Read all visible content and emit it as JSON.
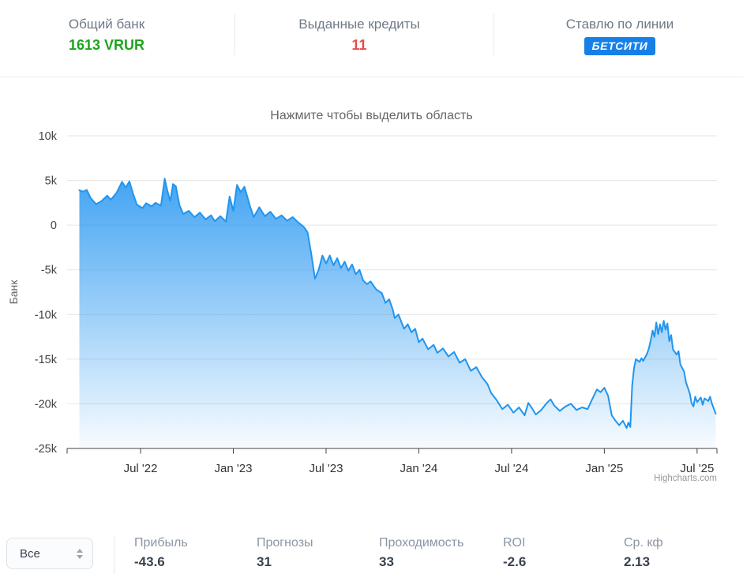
{
  "header": {
    "stats": [
      {
        "label": "Общий банк",
        "value": "1613 VRUR",
        "value_color": "#1ea41e"
      },
      {
        "label": "Выданные кредиты",
        "value": "11",
        "value_color": "#e8494b"
      },
      {
        "label": "Ставлю по линии",
        "value": "БЕТСИТИ",
        "value_style": "badge",
        "badge_color": "#1780e8"
      }
    ]
  },
  "chart": {
    "title": "Нажмите чтобы выделить область",
    "credits": "Highcharts.com"
  },
  "chart_data": {
    "type": "area",
    "title": "Нажмите чтобы выделить область",
    "ylabel": "Банк",
    "xlabel": "",
    "x_unit": "decimal_year",
    "xlim": [
      2022.104,
      2025.607
    ],
    "ylim": [
      -25000,
      10000
    ],
    "grid": true,
    "line_color": "#2095ef",
    "fill_color": "#1a90f0",
    "grid_color": "#e6e6e6",
    "axis_color": "#424242",
    "credits": "Highcharts.com",
    "xticks": [
      {
        "pos": 2022.5,
        "label": "Jul '22"
      },
      {
        "pos": 2023.0,
        "label": "Jan '23"
      },
      {
        "pos": 2023.5,
        "label": "Jul '23"
      },
      {
        "pos": 2024.0,
        "label": "Jan '24"
      },
      {
        "pos": 2024.5,
        "label": "Jul '24"
      },
      {
        "pos": 2025.0,
        "label": "Jan '25"
      },
      {
        "pos": 2025.5,
        "label": "Jul '25"
      }
    ],
    "yticks": [
      {
        "pos": 10000,
        "label": "10k"
      },
      {
        "pos": 5000,
        "label": "5k"
      },
      {
        "pos": 0,
        "label": "0"
      },
      {
        "pos": -5000,
        "label": "-5k"
      },
      {
        "pos": -10000,
        "label": "-10k"
      },
      {
        "pos": -15000,
        "label": "-15k"
      },
      {
        "pos": -20000,
        "label": "-20k"
      },
      {
        "pos": -25000,
        "label": "-25k"
      }
    ],
    "points": [
      [
        2022.17,
        3900
      ],
      [
        2022.19,
        3750
      ],
      [
        2022.21,
        3950
      ],
      [
        2022.23,
        3050
      ],
      [
        2022.26,
        2350
      ],
      [
        2022.29,
        2700
      ],
      [
        2022.32,
        3300
      ],
      [
        2022.34,
        2850
      ],
      [
        2022.37,
        3600
      ],
      [
        2022.4,
        4850
      ],
      [
        2022.42,
        4200
      ],
      [
        2022.44,
        4900
      ],
      [
        2022.46,
        3500
      ],
      [
        2022.48,
        2300
      ],
      [
        2022.51,
        1900
      ],
      [
        2022.53,
        2450
      ],
      [
        2022.56,
        2100
      ],
      [
        2022.58,
        2500
      ],
      [
        2022.61,
        2200
      ],
      [
        2022.63,
        5200
      ],
      [
        2022.645,
        3800
      ],
      [
        2022.66,
        2700
      ],
      [
        2022.675,
        4600
      ],
      [
        2022.69,
        4350
      ],
      [
        2022.71,
        2200
      ],
      [
        2022.73,
        1250
      ],
      [
        2022.76,
        1600
      ],
      [
        2022.79,
        900
      ],
      [
        2022.82,
        1400
      ],
      [
        2022.85,
        650
      ],
      [
        2022.88,
        1100
      ],
      [
        2022.9,
        450
      ],
      [
        2022.93,
        1000
      ],
      [
        2022.96,
        400
      ],
      [
        2022.98,
        3200
      ],
      [
        2023.0,
        1600
      ],
      [
        2023.02,
        4500
      ],
      [
        2023.04,
        3700
      ],
      [
        2023.06,
        4300
      ],
      [
        2023.09,
        2100
      ],
      [
        2023.11,
        900
      ],
      [
        2023.14,
        2000
      ],
      [
        2023.17,
        1000
      ],
      [
        2023.2,
        1500
      ],
      [
        2023.23,
        700
      ],
      [
        2023.26,
        1100
      ],
      [
        2023.29,
        500
      ],
      [
        2023.32,
        900
      ],
      [
        2023.35,
        300
      ],
      [
        2023.38,
        -200
      ],
      [
        2023.4,
        -800
      ],
      [
        2023.42,
        -3200
      ],
      [
        2023.44,
        -6000
      ],
      [
        2023.46,
        -5000
      ],
      [
        2023.48,
        -3400
      ],
      [
        2023.5,
        -4300
      ],
      [
        2023.52,
        -3400
      ],
      [
        2023.54,
        -4500
      ],
      [
        2023.56,
        -3700
      ],
      [
        2023.58,
        -4800
      ],
      [
        2023.6,
        -4100
      ],
      [
        2023.62,
        -5100
      ],
      [
        2023.64,
        -4400
      ],
      [
        2023.66,
        -5500
      ],
      [
        2023.68,
        -5000
      ],
      [
        2023.7,
        -6200
      ],
      [
        2023.72,
        -6600
      ],
      [
        2023.74,
        -6300
      ],
      [
        2023.77,
        -7200
      ],
      [
        2023.8,
        -7600
      ],
      [
        2023.82,
        -8700
      ],
      [
        2023.84,
        -8300
      ],
      [
        2023.86,
        -9500
      ],
      [
        2023.87,
        -10400
      ],
      [
        2023.89,
        -10000
      ],
      [
        2023.92,
        -11600
      ],
      [
        2023.94,
        -11100
      ],
      [
        2023.96,
        -12000
      ],
      [
        2023.98,
        -11600
      ],
      [
        2024.0,
        -13100
      ],
      [
        2024.02,
        -12700
      ],
      [
        2024.05,
        -13900
      ],
      [
        2024.08,
        -13400
      ],
      [
        2024.1,
        -14300
      ],
      [
        2024.13,
        -13800
      ],
      [
        2024.16,
        -14700
      ],
      [
        2024.19,
        -14200
      ],
      [
        2024.22,
        -15400
      ],
      [
        2024.25,
        -15000
      ],
      [
        2024.28,
        -16300
      ],
      [
        2024.31,
        -15900
      ],
      [
        2024.34,
        -17000
      ],
      [
        2024.37,
        -17800
      ],
      [
        2024.39,
        -18800
      ],
      [
        2024.42,
        -19600
      ],
      [
        2024.45,
        -20600
      ],
      [
        2024.48,
        -20100
      ],
      [
        2024.51,
        -21000
      ],
      [
        2024.54,
        -20400
      ],
      [
        2024.57,
        -21300
      ],
      [
        2024.59,
        -19900
      ],
      [
        2024.61,
        -20500
      ],
      [
        2024.63,
        -21200
      ],
      [
        2024.66,
        -20700
      ],
      [
        2024.69,
        -19900
      ],
      [
        2024.71,
        -19500
      ],
      [
        2024.73,
        -20200
      ],
      [
        2024.76,
        -20800
      ],
      [
        2024.79,
        -20300
      ],
      [
        2024.82,
        -20000
      ],
      [
        2024.85,
        -20700
      ],
      [
        2024.88,
        -20400
      ],
      [
        2024.91,
        -20600
      ],
      [
        2024.93,
        -19700
      ],
      [
        2024.96,
        -18400
      ],
      [
        2024.98,
        -18700
      ],
      [
        2025.0,
        -18200
      ],
      [
        2025.02,
        -19100
      ],
      [
        2025.04,
        -21300
      ],
      [
        2025.06,
        -21900
      ],
      [
        2025.08,
        -22400
      ],
      [
        2025.1,
        -21900
      ],
      [
        2025.12,
        -22700
      ],
      [
        2025.13,
        -22100
      ],
      [
        2025.14,
        -22600
      ],
      [
        2025.15,
        -18000
      ],
      [
        2025.16,
        -16000
      ],
      [
        2025.17,
        -15000
      ],
      [
        2025.19,
        -15300
      ],
      [
        2025.2,
        -14900
      ],
      [
        2025.21,
        -15200
      ],
      [
        2025.23,
        -14400
      ],
      [
        2025.24,
        -13800
      ],
      [
        2025.25,
        -12900
      ],
      [
        2025.26,
        -11800
      ],
      [
        2025.27,
        -12500
      ],
      [
        2025.28,
        -10900
      ],
      [
        2025.29,
        -12200
      ],
      [
        2025.3,
        -11100
      ],
      [
        2025.31,
        -12000
      ],
      [
        2025.32,
        -10700
      ],
      [
        2025.33,
        -11700
      ],
      [
        2025.34,
        -11000
      ],
      [
        2025.35,
        -13000
      ],
      [
        2025.36,
        -12300
      ],
      [
        2025.37,
        -13900
      ],
      [
        2025.39,
        -14500
      ],
      [
        2025.4,
        -14100
      ],
      [
        2025.41,
        -15600
      ],
      [
        2025.43,
        -16400
      ],
      [
        2025.44,
        -17600
      ],
      [
        2025.46,
        -18800
      ],
      [
        2025.47,
        -19900
      ],
      [
        2025.48,
        -20300
      ],
      [
        2025.49,
        -19200
      ],
      [
        2025.5,
        -19800
      ],
      [
        2025.52,
        -19300
      ],
      [
        2025.53,
        -20100
      ],
      [
        2025.54,
        -19400
      ],
      [
        2025.56,
        -19700
      ],
      [
        2025.57,
        -19200
      ],
      [
        2025.58,
        -20000
      ],
      [
        2025.6,
        -21100
      ]
    ]
  },
  "footer": {
    "filter": {
      "value": "Все"
    },
    "stats": [
      {
        "label": "Прибыль",
        "value": "-43.6",
        "negative": true
      },
      {
        "label": "Прогнозы",
        "value": "31",
        "negative": false
      },
      {
        "label": "Проходимость",
        "value": "33",
        "negative": false
      },
      {
        "label": "ROI",
        "value": "-2.6",
        "negative": true
      },
      {
        "label": "Ср. кф",
        "value": "2.13",
        "negative": false
      }
    ]
  },
  "colors": {
    "positive_green": "#1ea41e",
    "negative_red": "#e8494b",
    "badge_blue": "#1780e8",
    "series_line": "#2095ef",
    "muted_label": "#8b95a4"
  }
}
